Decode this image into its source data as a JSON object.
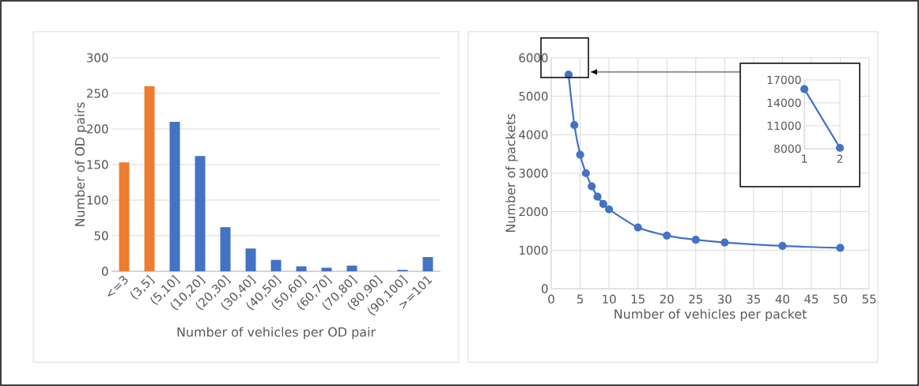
{
  "chart_data": [
    {
      "type": "bar",
      "xlabel": "Number of vehicles per OD pair",
      "ylabel": "Number of OD pairs",
      "categories": [
        "<=3",
        "(3,5]",
        "(5,10]",
        "(10,20]",
        "(20,30]",
        "(30,40]",
        "(40,50]",
        "(50,60]",
        "(60,70]",
        "(70,80]",
        "(80,90]",
        "(90,100]",
        ">=101"
      ],
      "values": [
        153,
        260,
        210,
        162,
        62,
        32,
        16,
        7,
        5,
        8,
        0,
        2,
        20
      ],
      "colors": [
        "#ed7d31",
        "#ed7d31",
        "#4472c4",
        "#4472c4",
        "#4472c4",
        "#4472c4",
        "#4472c4",
        "#4472c4",
        "#4472c4",
        "#4472c4",
        "#4472c4",
        "#4472c4",
        "#4472c4"
      ],
      "ylim": [
        0,
        300
      ],
      "yticks": [
        0,
        50,
        100,
        150,
        200,
        250,
        300
      ],
      "grid": "y"
    },
    {
      "type": "line",
      "xlabel": "Number of vehicles per packet",
      "ylabel": "Number of packets",
      "x": [
        3,
        4,
        5,
        6,
        7,
        8,
        9,
        10,
        15,
        20,
        25,
        30,
        40,
        50
      ],
      "values": [
        5560,
        4250,
        3480,
        3000,
        2660,
        2390,
        2200,
        2060,
        1590,
        1380,
        1270,
        1200,
        1110,
        1060
      ],
      "color": "#4472c4",
      "marker": "circle",
      "line_style": "solid",
      "xlim": [
        0,
        55
      ],
      "xticks": [
        0,
        5,
        10,
        15,
        20,
        25,
        30,
        35,
        40,
        45,
        50,
        55
      ],
      "ylim": [
        0,
        6000
      ],
      "yticks": [
        0,
        1000,
        2000,
        3000,
        4000,
        5000,
        6000
      ],
      "grid": true
    },
    {
      "type": "line",
      "x": [
        1,
        2
      ],
      "values": [
        15800,
        8100
      ],
      "color": "#4472c4",
      "marker": "circle",
      "line_style": "solid",
      "xlim": [
        1,
        2
      ],
      "xticks": [
        1,
        2
      ],
      "ylim": [
        8000,
        17000
      ],
      "yticks": [
        8000,
        11000,
        14000,
        17000
      ],
      "grid": true
    }
  ]
}
